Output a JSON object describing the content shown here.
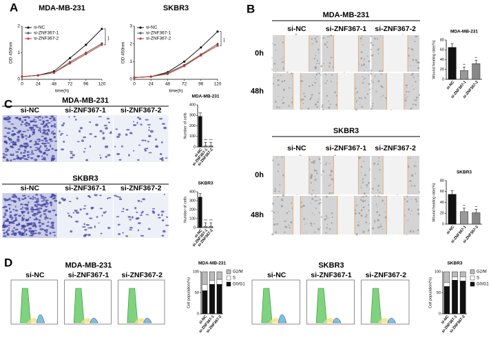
{
  "panel_labels": [
    "A",
    "B",
    "C",
    "D"
  ],
  "wound_healing": [
    {
      "title": "MDA-MB-231",
      "columns": [
        "si-NC",
        "si-ZNF367-1",
        "si-ZNF367-2"
      ],
      "rows": [
        "0h",
        "48h"
      ]
    },
    {
      "title": "SKBR3",
      "columns": [
        "si-NC",
        "si-ZNF367-1",
        "si-ZNF367-2"
      ],
      "rows": [
        "0h",
        "48h"
      ]
    }
  ],
  "transwell": [
    {
      "title": "MDA-MB-231",
      "columns": [
        "si-NC",
        "si-ZNF367-1",
        "si-ZNF367-2"
      ]
    },
    {
      "title": "SKBR3",
      "columns": [
        "si-NC",
        "si-ZNF367-1",
        "si-ZNF367-2"
      ]
    }
  ],
  "flow_cytometry": [
    {
      "title": "MDA-MB-231",
      "columns": [
        "si-NC",
        "si-ZNF367-1",
        "si-ZNF367-2"
      ]
    },
    {
      "title": "SKBR3",
      "columns": [
        "si-NC",
        "si-ZNF367-1",
        "si-ZNF367-2"
      ]
    }
  ],
  "chart_data": [
    {
      "type": "line",
      "title": "MDA-MB-231",
      "xlabel": "time(h)",
      "ylabel": "OD 450nm",
      "x": [
        0,
        24,
        48,
        72,
        96,
        120
      ],
      "xlim": [
        0,
        120
      ],
      "xticks": [
        0,
        24,
        48,
        72,
        96,
        120
      ],
      "ylim": [
        0,
        2
      ],
      "yticks": [
        0,
        1,
        2
      ],
      "series": [
        {
          "name": "si-NC",
          "color": "#111111",
          "values": [
            0.1,
            0.15,
            0.3,
            0.8,
            1.3,
            1.9
          ]
        },
        {
          "name": "si-ZNF367-1",
          "color": "#555555",
          "values": [
            0.1,
            0.15,
            0.25,
            0.65,
            1.0,
            1.35
          ]
        },
        {
          "name": "si-ZNF367-2",
          "color": "#c0392b",
          "values": [
            0.1,
            0.15,
            0.25,
            0.6,
            0.95,
            1.3
          ]
        }
      ],
      "annotations": [
        "***"
      ]
    },
    {
      "type": "line",
      "title": "SKBR3",
      "xlabel": "time(h)",
      "ylabel": "OD 450nm",
      "x": [
        0,
        24,
        48,
        72,
        96,
        120
      ],
      "xlim": [
        0,
        120
      ],
      "xticks": [
        0,
        24,
        48,
        72,
        96,
        120
      ],
      "ylim": [
        0,
        3
      ],
      "yticks": [
        0,
        1,
        2,
        3
      ],
      "series": [
        {
          "name": "si-NC",
          "color": "#111111",
          "values": [
            0.1,
            0.15,
            0.4,
            1.0,
            1.8,
            2.7
          ]
        },
        {
          "name": "si-ZNF367-1",
          "color": "#555555",
          "values": [
            0.1,
            0.15,
            0.35,
            0.8,
            1.4,
            2.0
          ]
        },
        {
          "name": "si-ZNF367-2",
          "color": "#c0392b",
          "values": [
            0.1,
            0.15,
            0.3,
            0.75,
            1.35,
            1.9
          ]
        }
      ],
      "annotations": [
        "***"
      ]
    },
    {
      "type": "bar",
      "title": "MDA-MB-231",
      "ylabel": "Wound healing rate(%)",
      "categories": [
        "si-NC",
        "si-ZNF367-1",
        "si-ZNF367-2"
      ],
      "values": [
        65,
        18,
        32
      ],
      "colors": [
        "#111111",
        "#999999",
        "#888888"
      ],
      "ylim": [
        0,
        80
      ],
      "yticks": [
        0,
        20,
        40,
        60,
        80
      ],
      "annotations": [
        null,
        "**",
        "**"
      ]
    },
    {
      "type": "bar",
      "title": "SKBR3",
      "ylabel": "Wound healing rate(%)",
      "categories": [
        "si-NC",
        "si-ZNF367-1",
        "si-ZNF367-2"
      ],
      "values": [
        55,
        23,
        21
      ],
      "colors": [
        "#111111",
        "#999999",
        "#888888"
      ],
      "ylim": [
        0,
        80
      ],
      "yticks": [
        0,
        20,
        40,
        60,
        80
      ],
      "annotations": [
        null,
        "**",
        "**"
      ]
    },
    {
      "type": "bar",
      "title": "MDA-MB-231",
      "ylabel": "Number of cells",
      "categories": [
        "si-NC",
        "si-ZNF367-1",
        "si-ZNF367-2"
      ],
      "values": [
        290,
        10,
        10
      ],
      "colors": [
        "#111111",
        "#999999",
        "#888888"
      ],
      "ylim": [
        0,
        400
      ],
      "yticks": [
        0,
        100,
        200,
        300,
        400
      ],
      "annotations": [
        null,
        "***",
        "***"
      ]
    },
    {
      "type": "bar",
      "title": "SKBR3",
      "ylabel": "Number of cells",
      "categories": [
        "si-NC",
        "si-ZNF367-1",
        "si-ZNF367-2"
      ],
      "values": [
        340,
        15,
        15
      ],
      "colors": [
        "#111111",
        "#999999",
        "#888888"
      ],
      "ylim": [
        0,
        400
      ],
      "yticks": [
        0,
        100,
        200,
        300,
        400
      ],
      "annotations": [
        null,
        "***",
        "***"
      ]
    },
    {
      "type": "stacked_bar",
      "title": "MDA-MB-231",
      "ylabel": "Cell population(%)",
      "categories": [
        "si-NC",
        "si-ZNF367-1",
        "si-ZNF367-2"
      ],
      "ylim": [
        0,
        100
      ],
      "yticks": [
        0,
        50,
        100
      ],
      "series": [
        {
          "name": "G0/G1",
          "color": "#111111",
          "values": [
            55,
            70,
            70
          ]
        },
        {
          "name": "S",
          "color": "#ffffff",
          "values": [
            15,
            10,
            12
          ]
        },
        {
          "name": "G2/M",
          "color": "#bbbbbb",
          "values": [
            30,
            20,
            18
          ]
        }
      ]
    },
    {
      "type": "stacked_bar",
      "title": "SKBR3",
      "ylabel": "Cell population(%)",
      "categories": [
        "si-NC",
        "si-ZNF367-1",
        "si-ZNF367-2"
      ],
      "ylim": [
        0,
        100
      ],
      "yticks": [
        0,
        50,
        100
      ],
      "series": [
        {
          "name": "G0/G1",
          "color": "#111111",
          "values": [
            65,
            80,
            78
          ]
        },
        {
          "name": "S",
          "color": "#ffffff",
          "values": [
            10,
            8,
            10
          ]
        },
        {
          "name": "G2/M",
          "color": "#bbbbbb",
          "values": [
            25,
            12,
            12
          ]
        }
      ]
    }
  ]
}
